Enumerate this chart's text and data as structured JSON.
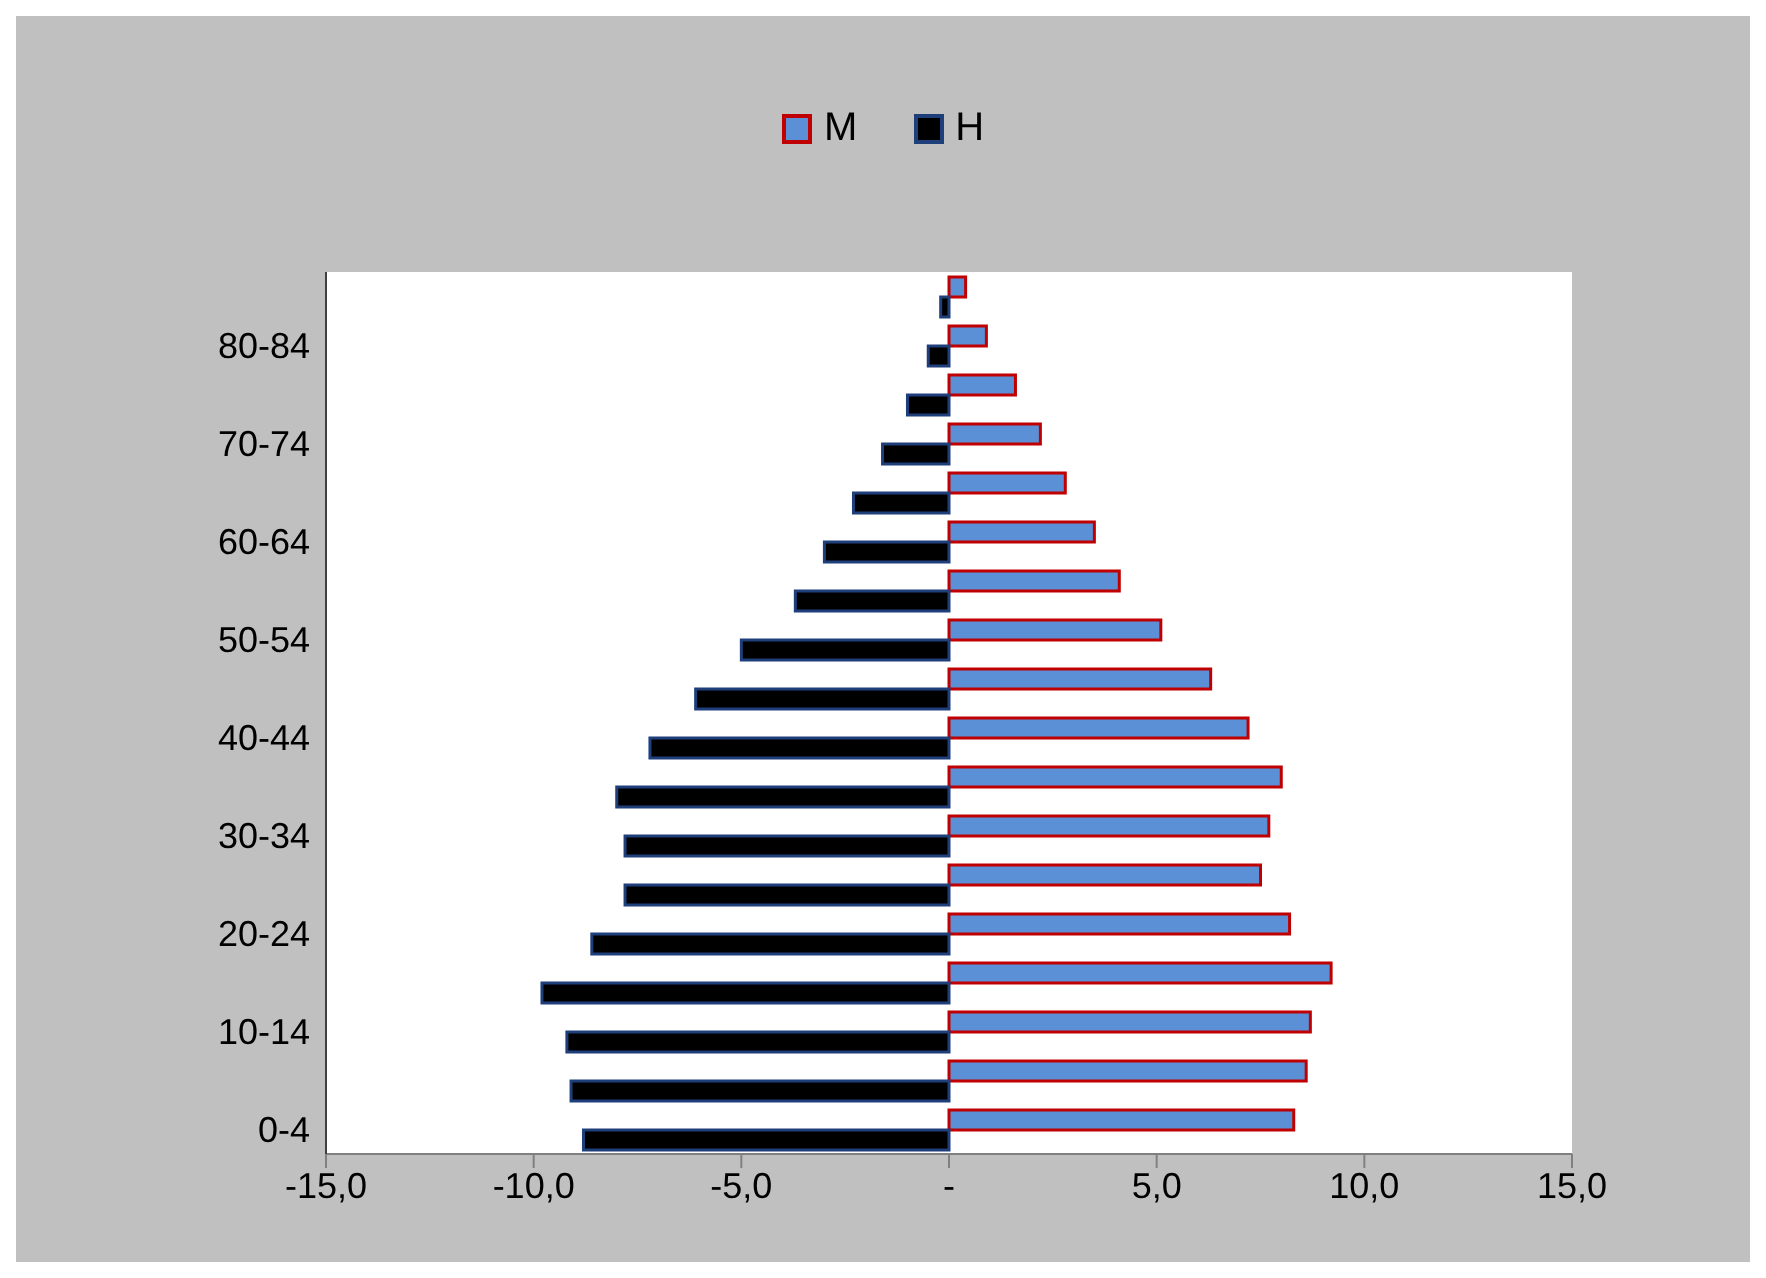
{
  "chart_data": {
    "type": "bar",
    "orientation": "horizontal",
    "categories": [
      null,
      "80-84",
      null,
      "70-74",
      null,
      "60-64",
      null,
      "50-54",
      null,
      "40-44",
      null,
      "30-34",
      null,
      "20-24",
      null,
      "10-14",
      null,
      "0-4"
    ],
    "series": [
      {
        "name": "M",
        "color": "#5b8fd6",
        "values": [
          0.4,
          0.9,
          1.6,
          2.2,
          2.8,
          3.5,
          4.1,
          5.1,
          6.3,
          7.2,
          8.0,
          7.7,
          7.5,
          8.2,
          9.2,
          8.7,
          8.6,
          8.3
        ]
      },
      {
        "name": "H",
        "color": "#000000",
        "values": [
          -0.2,
          -0.5,
          -1.0,
          -1.6,
          -2.3,
          -3.0,
          -3.7,
          -5.0,
          -6.1,
          -7.2,
          -8.0,
          -7.8,
          -7.8,
          -8.6,
          -9.8,
          -9.2,
          -9.1,
          -8.8
        ]
      }
    ],
    "xlim": [
      -15,
      15
    ],
    "xticks": [
      {
        "value": -15,
        "label": "-15,0"
      },
      {
        "value": -10,
        "label": "-10,0"
      },
      {
        "value": -5,
        "label": "-5,0"
      },
      {
        "value": 0,
        "label": "-"
      },
      {
        "value": 5,
        "label": "5,0"
      },
      {
        "value": 10,
        "label": "10,0"
      },
      {
        "value": 15,
        "label": "15,0"
      }
    ],
    "legend": "top",
    "grid": false
  }
}
